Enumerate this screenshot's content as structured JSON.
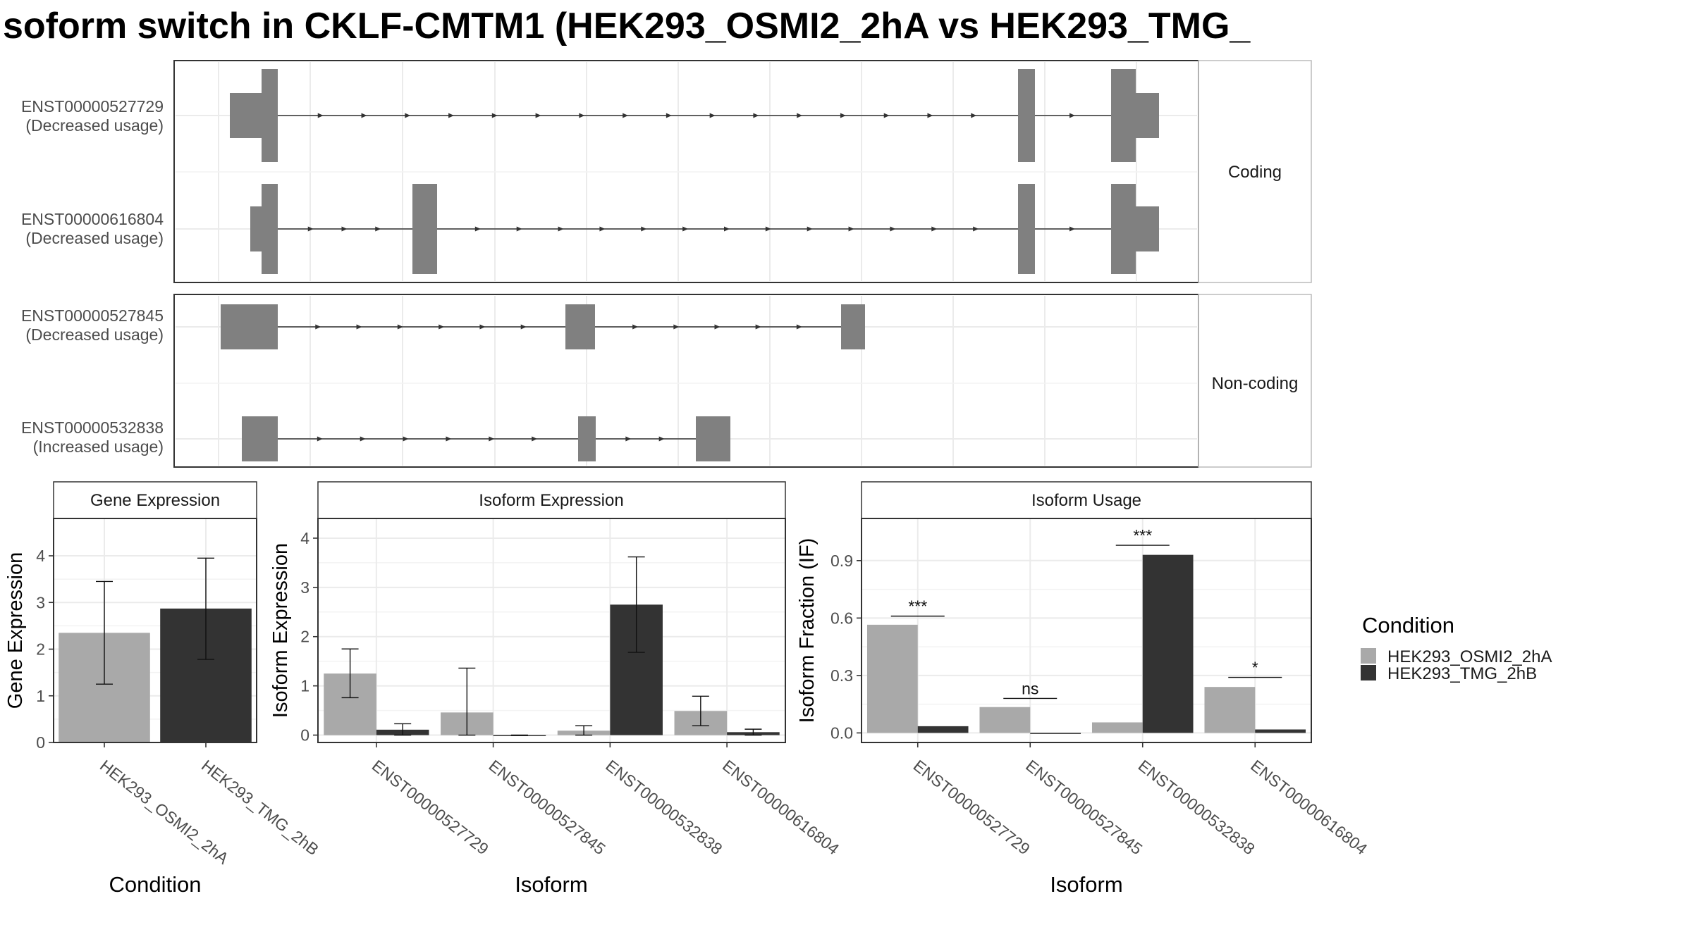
{
  "title": "soform switch in CKLF-CMTM1 (HEK293_OSMI2_2hA vs HEK293_TMG_",
  "colors": {
    "osmi": "#a9a9a9",
    "tmg": "#333333",
    "exon": "#808080",
    "strip_bg": "#ffffff",
    "grid": "#ebebeb"
  },
  "structure": {
    "facets": [
      {
        "label": "Coding"
      },
      {
        "label": "Non-coding"
      }
    ]
  },
  "gene_panel": {
    "strip": "Gene Expression",
    "ylabel": "Gene Expression",
    "xlabel": "Condition"
  },
  "iso_panel": {
    "strip": "Isoform Expression",
    "ylabel": "Isoform Expression",
    "xlabel": "Isoform"
  },
  "usage_panel": {
    "strip": "Isoform Usage",
    "ylabel": "Isoform Fraction (IF)",
    "xlabel": "Isoform"
  },
  "legend": {
    "title": "Condition",
    "items": [
      "HEK293_OSMI2_2hA",
      "HEK293_TMG_2hB"
    ]
  },
  "chart_data": [
    {
      "type": "transcript-structure",
      "facet": "Coding",
      "transcripts": [
        {
          "id": "ENST00000527729",
          "label1": "ENST00000527729",
          "label2": "(Decreased usage)"
        },
        {
          "id": "ENST00000616804",
          "label1": "ENST00000616804",
          "label2": "(Decreased usage)"
        }
      ]
    },
    {
      "type": "transcript-structure",
      "facet": "Non-coding",
      "transcripts": [
        {
          "id": "ENST00000527845",
          "label1": "ENST00000527845",
          "label2": "(Decreased usage)"
        },
        {
          "id": "ENST00000532838",
          "label1": "ENST00000532838",
          "label2": "(Increased usage)"
        }
      ]
    },
    {
      "type": "bar",
      "title": "Gene Expression",
      "xlabel": "Condition",
      "ylabel": "Gene Expression",
      "categories": [
        "HEK293_OSMI2_2hA",
        "HEK293_TMG_2hB"
      ],
      "values": [
        2.35,
        2.87
      ],
      "errors": [
        [
          1.25,
          3.45
        ],
        [
          1.78,
          3.95
        ]
      ],
      "ylim": [
        0,
        4.8
      ],
      "yticks": [
        0,
        1,
        2,
        3,
        4
      ]
    },
    {
      "type": "bar",
      "title": "Isoform Expression",
      "xlabel": "Isoform",
      "ylabel": "Isoform Expression",
      "categories": [
        "ENST00000527729",
        "ENST00000527845",
        "ENST00000532838",
        "ENST00000616804"
      ],
      "series": [
        {
          "name": "HEK293_OSMI2_2hA",
          "values": [
            1.25,
            0.46,
            0.09,
            0.49
          ],
          "errors": [
            [
              0.76,
              1.75
            ],
            [
              0.0,
              1.36
            ],
            [
              0.0,
              0.19
            ],
            [
              0.19,
              0.79
            ]
          ]
        },
        {
          "name": "HEK293_TMG_2hB",
          "values": [
            0.11,
            0.0,
            2.65,
            0.06
          ],
          "errors": [
            [
              0.0,
              0.23
            ],
            [
              0.0,
              0.0
            ],
            [
              1.68,
              3.62
            ],
            [
              0.0,
              0.12
            ]
          ]
        }
      ],
      "ylim": [
        -0.15,
        4.4
      ],
      "yticks": [
        0,
        1,
        2,
        3,
        4
      ]
    },
    {
      "type": "bar",
      "title": "Isoform Usage",
      "xlabel": "Isoform",
      "ylabel": "Isoform Fraction (IF)",
      "categories": [
        "ENST00000527729",
        "ENST00000527845",
        "ENST00000532838",
        "ENST00000616804"
      ],
      "series": [
        {
          "name": "HEK293_OSMI2_2hA",
          "values": [
            0.565,
            0.135,
            0.055,
            0.24
          ]
        },
        {
          "name": "HEK293_TMG_2hB",
          "values": [
            0.035,
            0.0,
            0.93,
            0.018
          ]
        }
      ],
      "significance": [
        "***",
        "ns",
        "***",
        "*"
      ],
      "sig_level": [
        0.61,
        0.18,
        0.98,
        0.29
      ],
      "ylim": [
        -0.05,
        1.12
      ],
      "yticks": [
        "0.0",
        "0.3",
        "0.6",
        "0.9"
      ]
    }
  ]
}
